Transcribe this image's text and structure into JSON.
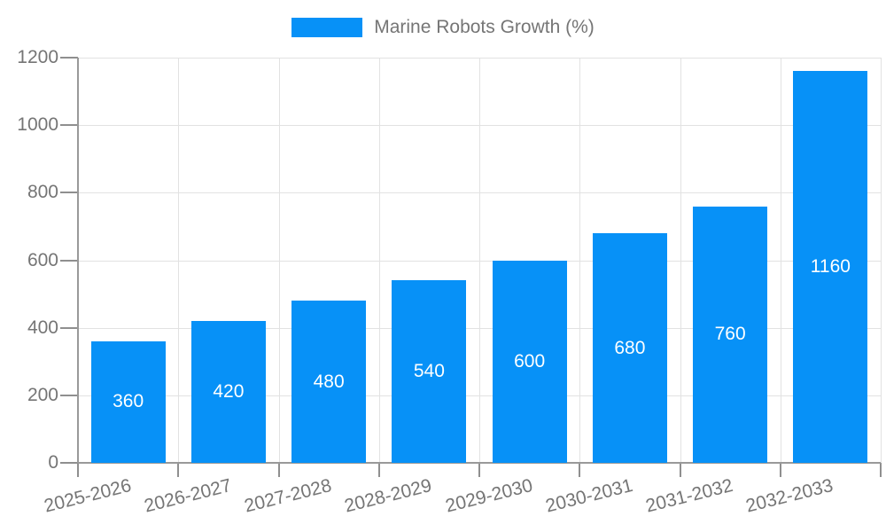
{
  "chart_data": {
    "type": "bar",
    "title": "",
    "legend": {
      "label": "Marine Robots Growth (%)",
      "position": "top"
    },
    "categories": [
      "2025-2026",
      "2026-2027",
      "2027-2028",
      "2028-2029",
      "2029-2030",
      "2030-2031",
      "2031-2032",
      "2032-2033"
    ],
    "series": [
      {
        "name": "Marine Robots Growth (%)",
        "values": [
          360,
          420,
          480,
          540,
          600,
          680,
          760,
          1160
        ]
      }
    ],
    "value_labels_shown": true,
    "xlabel": "",
    "ylabel": "",
    "ylim": [
      0,
      1200
    ],
    "yticks": [
      0,
      200,
      400,
      600,
      800,
      1000,
      1200
    ],
    "grid": true,
    "x_label_rotation_deg": -14,
    "colors": {
      "bar": "#0791f7",
      "bar_value_label": "#ffffff",
      "axis_line": "#999999",
      "tick_mark": "#8f8f8f",
      "gridline": "#e2e2e2",
      "tick_label": "#757575",
      "legend_text": "#757575",
      "background": "#ffffff"
    }
  }
}
